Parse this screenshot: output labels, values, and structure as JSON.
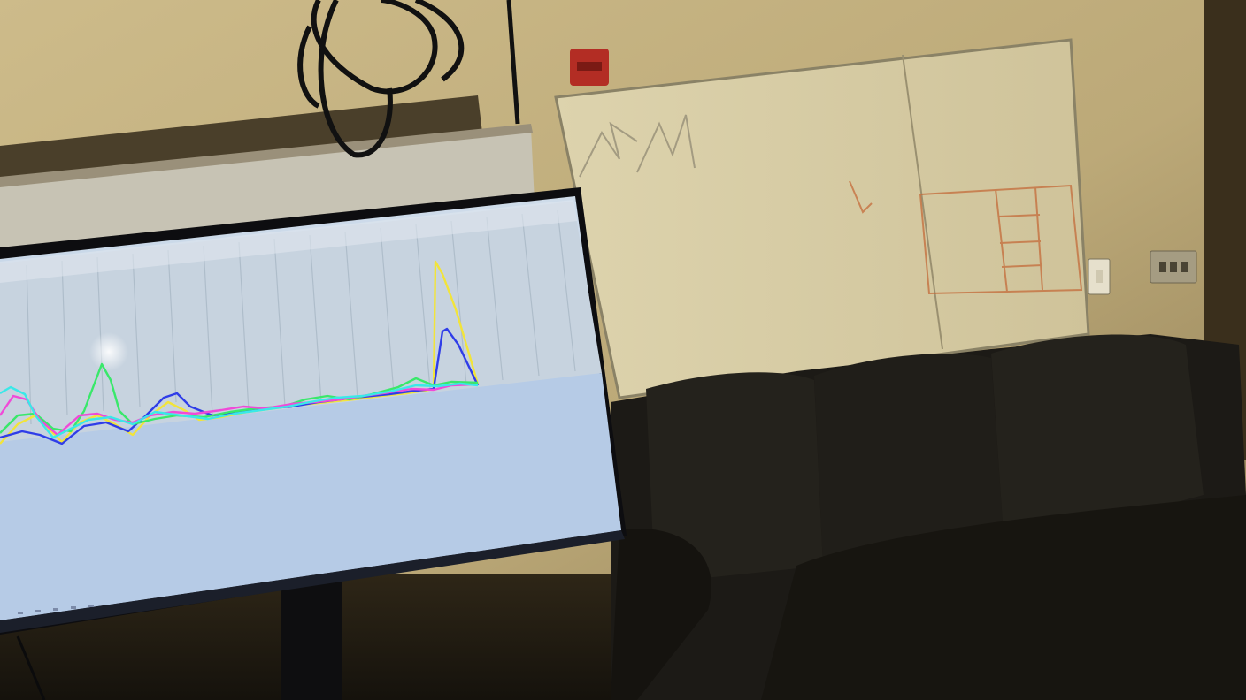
{
  "scene": {
    "description_free": true
  },
  "colors": {
    "wall": "#c9b88a",
    "whiteboard": "#d8cfa8",
    "couch": "#1c1a16",
    "monitor_bezel": "#0d0d10",
    "screen_bg": "#b8d0e8",
    "trace_yellow": "#f2e43a",
    "trace_blue": "#2f3de8",
    "trace_green": "#39e86a",
    "trace_magenta": "#f04ad8",
    "trace_cyan": "#3ae8e8",
    "fire_alarm": "#b32d24",
    "marker_orange": "#c46b3a"
  },
  "icons": {
    "fire_alarm": "fire-alarm-icon",
    "light_switch": "light-switch-icon",
    "outlet": "outlet-icon"
  }
}
